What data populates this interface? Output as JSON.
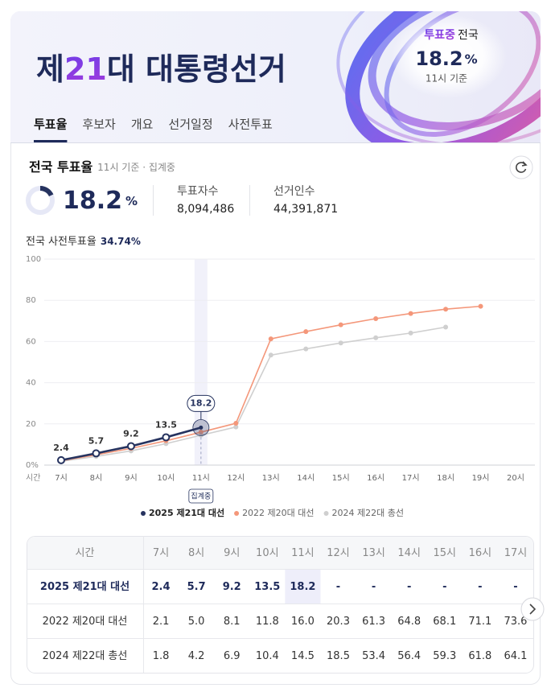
{
  "header": {
    "title": [
      "제",
      "21",
      "대 대통령선거"
    ],
    "tabs": [
      "투표율",
      "후보자",
      "개요",
      "선거일정",
      "사전투표"
    ],
    "active_tab": 0,
    "status": [
      "투표중",
      "전국"
    ],
    "as_of": "11시 기준"
  },
  "summary": {
    "title": "전국 투표율",
    "note": "11시 기준 · 집계중",
    "rate": 18.2,
    "unit": "%",
    "stats": [
      {
        "label": "투표자수",
        "value": "8,094,486"
      },
      {
        "label": "선거인수",
        "value": "44,391,871"
      }
    ],
    "early": {
      "label": "전국 사전투표율",
      "value": "34.74%"
    }
  },
  "chart_data": {
    "type": "line",
    "xlabel": "시간",
    "categories": [
      "7시",
      "8시",
      "9시",
      "10시",
      "11시",
      "12시",
      "13시",
      "14시",
      "15시",
      "16시",
      "17시",
      "18시",
      "19시",
      "20시"
    ],
    "series": [
      {
        "name": "2025 제21대 대선",
        "color": "#26335f",
        "show_labels": true,
        "values": [
          2.4,
          5.7,
          9.2,
          13.5,
          18.2,
          null,
          null,
          null,
          null,
          null,
          null,
          null,
          null,
          null
        ]
      },
      {
        "name": "2022 제20대 대선",
        "color": "#f4977a",
        "values": [
          2.1,
          5.0,
          8.1,
          11.8,
          16.0,
          20.3,
          61.3,
          64.8,
          68.1,
          71.1,
          73.6,
          75.7,
          77.1,
          null
        ]
      },
      {
        "name": "2024 제22대 총선",
        "color": "#cfcfcf",
        "values": [
          1.8,
          4.2,
          6.9,
          10.4,
          14.5,
          18.5,
          53.4,
          56.4,
          59.3,
          61.8,
          64.1,
          67.0,
          null,
          null
        ]
      }
    ],
    "ylim": [
      0,
      100
    ],
    "yticks": [
      {
        "value": 0,
        "label": "0%"
      },
      20,
      40,
      60,
      80,
      100
    ],
    "grid": true,
    "highlight_index": 4,
    "highlight_label": "집계중"
  },
  "table": {
    "header": [
      "시간",
      "7시",
      "8시",
      "9시",
      "10시",
      "11시",
      "12시",
      "13시",
      "14시",
      "15시",
      "16시",
      "17시"
    ],
    "rows": [
      [
        "2025 제21대 대선",
        "2.4",
        "5.7",
        "9.2",
        "13.5",
        "18.2",
        "-",
        "-",
        "-",
        "-",
        "-",
        "-"
      ],
      [
        "2022 제20대 대선",
        "2.1",
        "5.0",
        "8.1",
        "11.8",
        "16.0",
        "20.3",
        "61.3",
        "64.8",
        "68.1",
        "71.1",
        "73.6"
      ],
      [
        "2024 제22대 총선",
        "1.8",
        "4.2",
        "6.9",
        "10.4",
        "14.5",
        "18.5",
        "53.4",
        "56.4",
        "59.3",
        "61.8",
        "64.1"
      ]
    ]
  }
}
